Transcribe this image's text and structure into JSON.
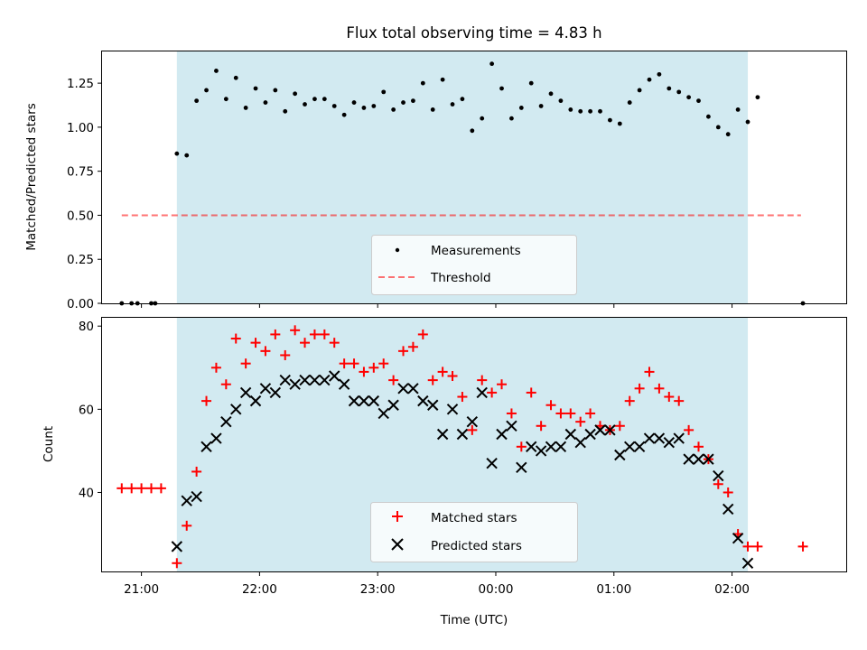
{
  "colors": {
    "span": "#add8e6",
    "measurement": "#000000",
    "threshold": "#ff0000",
    "matched": "#ff0000",
    "predicted": "#000000"
  },
  "chart_data": [
    {
      "type": "scatter",
      "title": "Flux total observing time = 4.83 h",
      "xlabel": "",
      "ylabel": "Matched/Predicted stars",
      "xlim": [
        "20:40",
        "02:58"
      ],
      "ylim": [
        0,
        1.43
      ],
      "yticks": [
        "0.00",
        "0.25",
        "0.50",
        "0.75",
        "1.00",
        "1.25"
      ],
      "ytick_values": [
        0,
        0.25,
        0.5,
        0.75,
        1.0,
        1.25
      ],
      "observing_span": [
        "21:18",
        "02:08"
      ],
      "threshold": {
        "value": 0.5,
        "x": [
          "20:50",
          "02:35"
        ],
        "style": "dashed"
      },
      "legend": {
        "position": "lower center",
        "entries": [
          "Measurements",
          "Threshold"
        ]
      },
      "series": [
        {
          "name": "Measurements",
          "marker": "dot",
          "x": [
            "20:50",
            "20:55",
            "20:58",
            "21:05",
            "21:07",
            "21:18",
            "21:23",
            "21:28",
            "21:33",
            "21:38",
            "21:43",
            "21:48",
            "21:53",
            "21:58",
            "22:03",
            "22:08",
            "22:13",
            "22:18",
            "22:23",
            "22:28",
            "22:33",
            "22:38",
            "22:43",
            "22:48",
            "22:53",
            "22:58",
            "23:03",
            "23:08",
            "23:13",
            "23:18",
            "23:23",
            "23:28",
            "23:33",
            "23:38",
            "23:43",
            "23:48",
            "23:53",
            "23:58",
            "00:03",
            "00:08",
            "00:13",
            "00:18",
            "00:23",
            "00:28",
            "00:33",
            "00:38",
            "00:43",
            "00:48",
            "00:53",
            "00:58",
            "01:03",
            "01:08",
            "01:13",
            "01:18",
            "01:23",
            "01:28",
            "01:33",
            "01:38",
            "01:43",
            "01:48",
            "01:53",
            "01:58",
            "02:03",
            "02:08",
            "02:13",
            "02:36"
          ],
          "y": [
            0.0,
            0.0,
            0.0,
            0.0,
            0.0,
            0.85,
            0.84,
            1.15,
            1.21,
            1.32,
            1.16,
            1.28,
            1.11,
            1.22,
            1.14,
            1.21,
            1.09,
            1.19,
            1.13,
            1.16,
            1.16,
            1.12,
            1.07,
            1.14,
            1.11,
            1.12,
            1.2,
            1.1,
            1.14,
            1.15,
            1.25,
            1.1,
            1.27,
            1.13,
            1.16,
            0.98,
            1.05,
            1.36,
            1.22,
            1.05,
            1.11,
            1.25,
            1.12,
            1.19,
            1.15,
            1.1,
            1.09,
            1.09,
            1.09,
            1.04,
            1.02,
            1.14,
            1.21,
            1.27,
            1.3,
            1.22,
            1.2,
            1.17,
            1.15,
            1.06,
            1.0,
            0.96,
            1.1,
            1.03,
            1.17,
            0.0
          ]
        }
      ]
    },
    {
      "type": "scatter",
      "title": "",
      "xlabel": "Time (UTC)",
      "ylabel": "Count",
      "xlim": [
        "20:40",
        "02:58"
      ],
      "ylim": [
        21,
        82
      ],
      "yticks": [
        "40",
        "60",
        "80"
      ],
      "ytick_values": [
        40,
        60,
        80
      ],
      "xticks": [
        "21:00",
        "22:00",
        "23:00",
        "00:00",
        "01:00",
        "02:00"
      ],
      "observing_span": [
        "21:18",
        "02:08"
      ],
      "legend": {
        "position": "lower center",
        "entries": [
          "Matched stars",
          "Predicted stars"
        ]
      },
      "series": [
        {
          "name": "Matched stars",
          "marker": "plus",
          "x": [
            "20:50",
            "20:55",
            "21:00",
            "21:05",
            "21:10",
            "21:18",
            "21:23",
            "21:28",
            "21:33",
            "21:38",
            "21:43",
            "21:48",
            "21:53",
            "21:58",
            "22:03",
            "22:08",
            "22:13",
            "22:18",
            "22:23",
            "22:28",
            "22:33",
            "22:38",
            "22:43",
            "22:48",
            "22:53",
            "22:58",
            "23:03",
            "23:08",
            "23:13",
            "23:18",
            "23:23",
            "23:28",
            "23:33",
            "23:38",
            "23:43",
            "23:48",
            "23:53",
            "23:58",
            "00:03",
            "00:08",
            "00:13",
            "00:18",
            "00:23",
            "00:28",
            "00:33",
            "00:38",
            "00:43",
            "00:48",
            "00:53",
            "00:58",
            "01:03",
            "01:08",
            "01:13",
            "01:18",
            "01:23",
            "01:28",
            "01:33",
            "01:38",
            "01:43",
            "01:48",
            "01:53",
            "01:58",
            "02:03",
            "02:08",
            "02:13",
            "02:36"
          ],
          "y": [
            41,
            41,
            41,
            41,
            41,
            23,
            32,
            45,
            62,
            70,
            66,
            77,
            71,
            76,
            74,
            78,
            73,
            79,
            76,
            78,
            78,
            76,
            71,
            71,
            69,
            70,
            71,
            67,
            74,
            75,
            78,
            67,
            69,
            68,
            63,
            55,
            67,
            64,
            66,
            59,
            51,
            64,
            56,
            61,
            59,
            59,
            57,
            59,
            56,
            55,
            56,
            62,
            65,
            69,
            65,
            63,
            62,
            55,
            51,
            48,
            42,
            40,
            30,
            27,
            27,
            27
          ]
        },
        {
          "name": "Predicted stars",
          "marker": "x",
          "x": [
            "21:18",
            "21:23",
            "21:28",
            "21:33",
            "21:38",
            "21:43",
            "21:48",
            "21:53",
            "21:58",
            "22:03",
            "22:08",
            "22:13",
            "22:18",
            "22:23",
            "22:28",
            "22:33",
            "22:38",
            "22:43",
            "22:48",
            "22:53",
            "22:58",
            "23:03",
            "23:08",
            "23:13",
            "23:18",
            "23:23",
            "23:28",
            "23:33",
            "23:38",
            "23:43",
            "23:48",
            "23:53",
            "23:58",
            "00:03",
            "00:08",
            "00:13",
            "00:18",
            "00:23",
            "00:28",
            "00:33",
            "00:38",
            "00:43",
            "00:48",
            "00:53",
            "00:58",
            "01:03",
            "01:08",
            "01:13",
            "01:18",
            "01:23",
            "01:28",
            "01:33",
            "01:38",
            "01:43",
            "01:48",
            "01:53",
            "01:58",
            "02:03",
            "02:08"
          ],
          "y": [
            27,
            38,
            39,
            51,
            53,
            57,
            60,
            64,
            62,
            65,
            64,
            67,
            66,
            67,
            67,
            67,
            68,
            66,
            62,
            62,
            62,
            59,
            61,
            65,
            65,
            62,
            61,
            54,
            60,
            54,
            57,
            64,
            47,
            54,
            56,
            46,
            51,
            50,
            51,
            51,
            54,
            52,
            54,
            55,
            55,
            49,
            51,
            51,
            53,
            53,
            52,
            53,
            48,
            48,
            48,
            44,
            36,
            29,
            23
          ]
        }
      ]
    }
  ]
}
